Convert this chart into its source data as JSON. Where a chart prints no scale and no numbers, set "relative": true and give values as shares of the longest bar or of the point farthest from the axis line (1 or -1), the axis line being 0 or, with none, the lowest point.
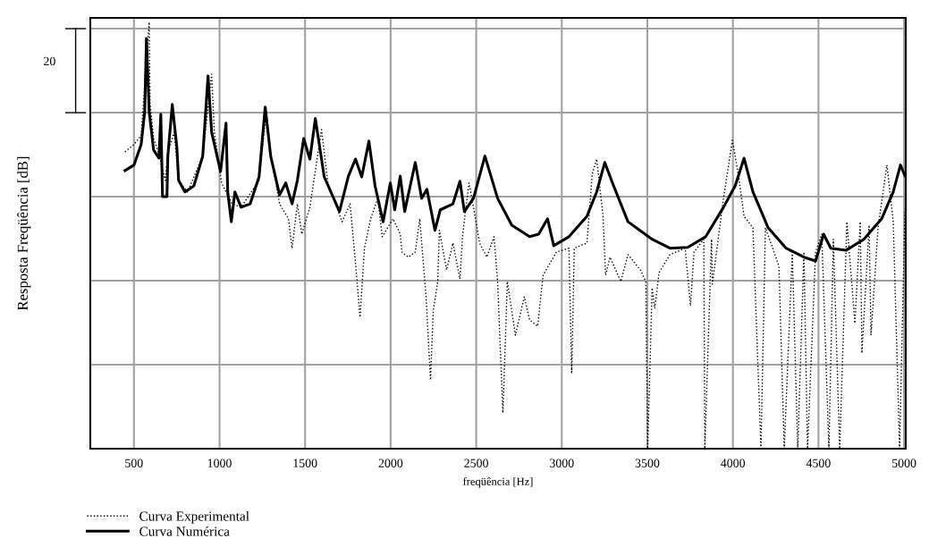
{
  "chart_data": {
    "type": "line",
    "relative": true,
    "xlabel": "freqüência [Hz]",
    "ylabel": "Resposta Freqüência [dB]",
    "annotations": [
      "20"
    ],
    "xlim": [
      245,
      5010
    ],
    "xticks": [
      500,
      1000,
      1500,
      2000,
      2500,
      3000,
      3500,
      4000,
      4500,
      5000
    ],
    "grid": true,
    "legend": "bottom left",
    "series": [
      {
        "name": "Curva Experimental",
        "color": "#000000",
        "line_style": "dotted",
        "x": [
          448,
          500,
          542,
          568,
          589,
          594,
          615,
          646,
          683,
          698,
          735,
          761,
          813,
          902,
          954,
          970,
          1012,
          1038,
          1074,
          1126,
          1231,
          1273,
          1299,
          1351,
          1403,
          1424,
          1455,
          1481,
          1528,
          1596,
          1633,
          1716,
          1763,
          1795,
          1821,
          1847,
          1883,
          1925,
          1951,
          2014,
          2056,
          2066,
          2103,
          2144,
          2170,
          2207,
          2233,
          2249,
          2275,
          2285,
          2327,
          2364,
          2405,
          2421,
          2458,
          2484,
          2520,
          2562,
          2604,
          2625,
          2656,
          2682,
          2729,
          2781,
          2812,
          2859,
          2891,
          2969,
          3042,
          3058,
          3073,
          3147,
          3178,
          3204,
          3241,
          3256,
          3282,
          3345,
          3387,
          3460,
          3491,
          3502,
          3528,
          3543,
          3569,
          3632,
          3721,
          3752,
          3773,
          3830,
          3836,
          3875,
          3880,
          3945,
          3997,
          4034,
          4065,
          4117,
          4164,
          4190,
          4269,
          4300,
          4347,
          4379,
          4415,
          4436,
          4483,
          4519,
          4561,
          4587,
          4624,
          4666,
          4713,
          4744,
          4754,
          4796,
          4807,
          4848,
          4900,
          4937,
          4974,
          5005
        ],
        "values": [
          0.696,
          0.713,
          0.734,
          0.88,
          1.0,
          0.811,
          0.727,
          0.692,
          0.629,
          0.692,
          0.742,
          0.629,
          0.602,
          0.686,
          0.878,
          0.742,
          0.623,
          0.602,
          0.574,
          0.566,
          0.629,
          0.79,
          0.692,
          0.574,
          0.539,
          0.47,
          0.574,
          0.503,
          0.566,
          0.748,
          0.623,
          0.532,
          0.574,
          0.434,
          0.308,
          0.47,
          0.539,
          0.587,
          0.497,
          0.539,
          0.503,
          0.461,
          0.449,
          0.461,
          0.539,
          0.356,
          0.161,
          0.323,
          0.392,
          0.512,
          0.419,
          0.482,
          0.398,
          0.503,
          0.623,
          0.566,
          0.482,
          0.449,
          0.497,
          0.392,
          0.084,
          0.392,
          0.266,
          0.356,
          0.302,
          0.287,
          0.407,
          0.461,
          0.47,
          0.176,
          0.47,
          0.482,
          0.644,
          0.679,
          0.545,
          0.407,
          0.449,
          0.392,
          0.455,
          0.419,
          0.392,
          0,
          0.377,
          0.329,
          0.413,
          0.455,
          0.47,
          0.335,
          0.461,
          0.491,
          0,
          0.491,
          0.386,
          0.587,
          0.723,
          0.637,
          0.545,
          0.518,
          0,
          0.518,
          0.428,
          0,
          0.461,
          0,
          0.461,
          0,
          0.461,
          0.503,
          0,
          0.491,
          0,
          0.532,
          0.294,
          0.532,
          0.224,
          0.524,
          0.266,
          0.518,
          0.665,
          0.532,
          0,
          0.56
        ]
      },
      {
        "name": "Curva Numérica",
        "color": "#000000",
        "line_style": "solid",
        "x": [
          448,
          500,
          542,
          563,
          573,
          589,
          615,
          646,
          657,
          667,
          693,
          698,
          724,
          751,
          761,
          798,
          850,
          902,
          933,
          954,
          1006,
          1038,
          1048,
          1069,
          1090,
          1126,
          1179,
          1231,
          1267,
          1299,
          1351,
          1387,
          1424,
          1455,
          1492,
          1528,
          1560,
          1612,
          1701,
          1753,
          1795,
          1831,
          1873,
          1909,
          1956,
          1998,
          2024,
          2056,
          2082,
          2144,
          2181,
          2212,
          2259,
          2290,
          2364,
          2405,
          2431,
          2484,
          2551,
          2625,
          2708,
          2812,
          2865,
          2917,
          2953,
          3042,
          3147,
          3204,
          3251,
          3303,
          3387,
          3528,
          3632,
          3736,
          3841,
          3945,
          4013,
          4065,
          4117,
          4206,
          4311,
          4415,
          4483,
          4530,
          4572,
          4660,
          4765,
          4869,
          4937,
          4979,
          5005
        ],
        "values": [
          0.652,
          0.665,
          0.713,
          0.79,
          0.962,
          0.79,
          0.7,
          0.681,
          0.784,
          0.591,
          0.591,
          0.686,
          0.807,
          0.706,
          0.629,
          0.602,
          0.616,
          0.686,
          0.874,
          0.742,
          0.65,
          0.763,
          0.602,
          0.532,
          0.602,
          0.566,
          0.574,
          0.637,
          0.801,
          0.686,
          0.595,
          0.623,
          0.574,
          0.629,
          0.727,
          0.679,
          0.774,
          0.637,
          0.556,
          0.639,
          0.679,
          0.637,
          0.721,
          0.616,
          0.532,
          0.623,
          0.56,
          0.639,
          0.556,
          0.671,
          0.587,
          0.608,
          0.512,
          0.56,
          0.574,
          0.627,
          0.556,
          0.587,
          0.686,
          0.587,
          0.524,
          0.497,
          0.503,
          0.539,
          0.476,
          0.497,
          0.545,
          0.602,
          0.671,
          0.616,
          0.532,
          0.491,
          0.47,
          0.472,
          0.497,
          0.566,
          0.616,
          0.681,
          0.602,
          0.518,
          0.47,
          0.449,
          0.44,
          0.503,
          0.47,
          0.465,
          0.491,
          0.539,
          0.602,
          0.665,
          0.64
        ]
      }
    ]
  }
}
